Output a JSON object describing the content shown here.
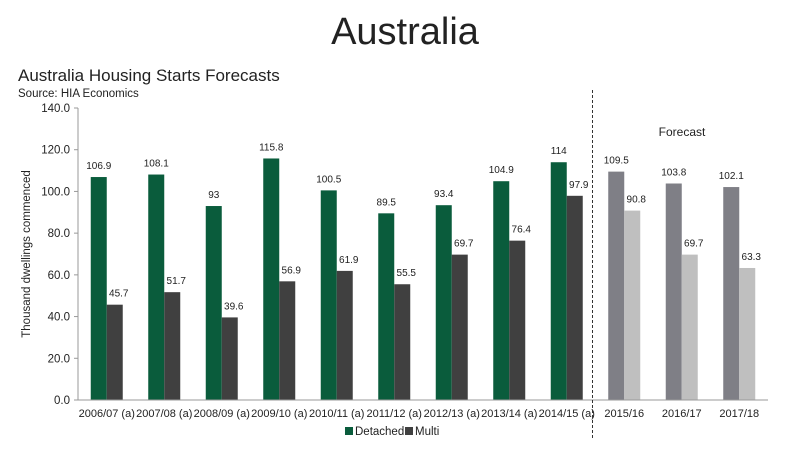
{
  "slide_title": "Australia",
  "chart_data": {
    "type": "bar",
    "title": "Australia Housing Starts Forecasts",
    "subtitle": "Source: HIA Economics",
    "ylabel": "Thousand dwellings commenced",
    "xlabel": "",
    "ylim": [
      0,
      140
    ],
    "yticks": [
      "0.0",
      "20.0",
      "40.0",
      "60.0",
      "80.0",
      "100.0",
      "120.0",
      "140.0"
    ],
    "categories": [
      "2006/07 (a)",
      "2007/08 (a)",
      "2008/09 (a)",
      "2009/10 (a)",
      "2010/11 (a)",
      "2011/12 (a)",
      "2012/13 (a)",
      "2013/14 (a)",
      "2014/15 (a)",
      "2015/16",
      "2016/17",
      "2017/18"
    ],
    "forecast_start_index": 9,
    "forecast_label": "Forecast",
    "series": [
      {
        "name": "Detached",
        "color": "#0a5c3c",
        "forecast_color": "#7f7f86",
        "values": [
          106.9,
          108.1,
          93.0,
          115.8,
          100.5,
          89.5,
          93.4,
          104.9,
          114.0,
          109.5,
          103.8,
          102.1
        ]
      },
      {
        "name": "Multi",
        "color": "#404040",
        "forecast_color": "#bfbfbf",
        "values": [
          45.7,
          51.7,
          39.6,
          56.9,
          61.9,
          55.5,
          69.7,
          76.4,
          97.9,
          90.8,
          69.7,
          63.3
        ]
      }
    ],
    "legend": "bottom",
    "grid": false
  }
}
